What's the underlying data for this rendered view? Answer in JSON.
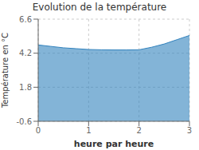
{
  "chart_data": {
    "type": "area",
    "title": "Evolution de la température",
    "xlabel": "heure par heure",
    "ylabel": "Température en °C",
    "x": [
      0,
      0.25,
      0.5,
      0.75,
      1.0,
      1.25,
      1.5,
      1.75,
      2.0,
      2.25,
      2.5,
      2.75,
      3.0
    ],
    "values": [
      4.78,
      4.68,
      4.58,
      4.52,
      4.46,
      4.44,
      4.43,
      4.43,
      4.44,
      4.62,
      4.85,
      5.15,
      5.45
    ],
    "xlim": [
      0,
      3
    ],
    "ylim": [
      -0.6,
      6.6
    ],
    "xticks": [
      0,
      1,
      2,
      3
    ],
    "yticks": [
      -0.6,
      1.8,
      4.2,
      6.6
    ],
    "grid": true
  }
}
